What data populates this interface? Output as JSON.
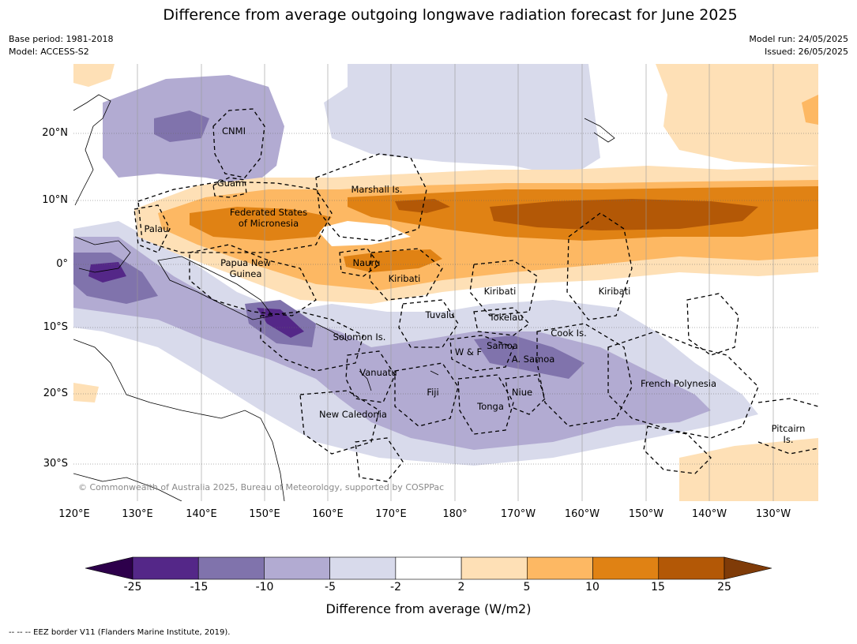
{
  "title": "Difference from average outgoing longwave radiation forecast for June 2025",
  "meta_left": {
    "base_period": "Base period: 1981-2018",
    "model": "Model: ACCESS-S2"
  },
  "meta_right": {
    "model_run": "Model run: 24/05/2025",
    "issued": "Issued: 26/05/2025"
  },
  "map": {
    "lat_ticks": [
      "20°N",
      "10°N",
      "0°",
      "10°S",
      "20°S",
      "30°S"
    ],
    "lon_ticks": [
      "120°E",
      "130°E",
      "140°E",
      "150°E",
      "160°E",
      "170°E",
      "180°",
      "170°W",
      "160°W",
      "150°W",
      "140°W",
      "130°W"
    ],
    "labels": {
      "cnmi": "CNMI",
      "guam": "Guam",
      "marshall": "Marshall Is.",
      "fsm_1": "Federated States",
      "fsm_2": "of Micronesia",
      "palau": "Palau",
      "png_1": "Papua New",
      "png_2": "Guinea",
      "nauru": "Nauru",
      "kiribati_w": "Kiribati",
      "kiribati_c": "Kiribati",
      "kiribati_e": "Kiribati",
      "tuvalu": "Tuvalu",
      "tokelau": "Tokelau",
      "solomon": "Solomon Is.",
      "samoa": "Samoa",
      "wf": "W & F",
      "asamoa": "A. Samoa",
      "cook": "Cook Is.",
      "vanuatu": "Vanuatu",
      "fiji": "Fiji",
      "niue": "Niue",
      "tonga": "Tonga",
      "new_caledonia": "New Caledonia",
      "french_polynesia": "French Polynesia",
      "pitcairn_1": "Pitcairn",
      "pitcairn_2": "Is."
    },
    "copyright": "© Commonwealth of Australia 2025, Bureau of Meteorology, supported by COSPPac"
  },
  "legend": {
    "ticks": [
      "-25",
      "-15",
      "-10",
      "-5",
      "-2",
      "2",
      "5",
      "10",
      "15",
      "25"
    ],
    "colors": [
      "#2d004b",
      "#542788",
      "#8073ac",
      "#b2abd2",
      "#d8daeb",
      "#ffffff",
      "#fee0b6",
      "#fdb863",
      "#e08214",
      "#b35806",
      "#7f3b08"
    ],
    "label": "Difference from average (W/m2)"
  },
  "footnote": "--  --  -- EEZ border V11 (Flanders Marine Institute, 2019)."
}
